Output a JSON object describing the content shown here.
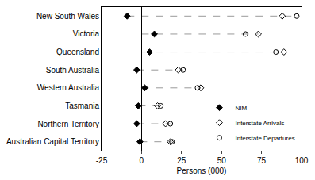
{
  "chart_data": {
    "type": "scatter",
    "orientation": "horizontal",
    "categories": [
      "New South Wales",
      "Victoria",
      "Queensland",
      "South Australia",
      "Western Australia",
      "Tasmania",
      "Northern Territory",
      "Australian Capital Territory"
    ],
    "series": [
      {
        "name": "NIM",
        "color": "#000000",
        "marker": "diamond",
        "values": [
          -9,
          8,
          5,
          -3,
          2,
          -2,
          -3,
          -1
        ]
      },
      {
        "name": "Interstate Arrivals",
        "color": "#000000",
        "marker": "diamond-open",
        "values": [
          88,
          73,
          89,
          23,
          37,
          10,
          15,
          18
        ]
      },
      {
        "name": "Interstate Departures",
        "color": "#000000",
        "marker": "circle-open",
        "values": [
          97,
          65,
          84,
          26,
          35,
          12,
          18,
          19
        ]
      }
    ],
    "x_label": "Persons (000)",
    "xlim": [
      -25,
      100
    ],
    "xticks": [
      -25,
      0,
      25,
      50,
      75,
      100
    ],
    "line_style": "dash",
    "legend": "bottom right",
    "grid": false
  }
}
